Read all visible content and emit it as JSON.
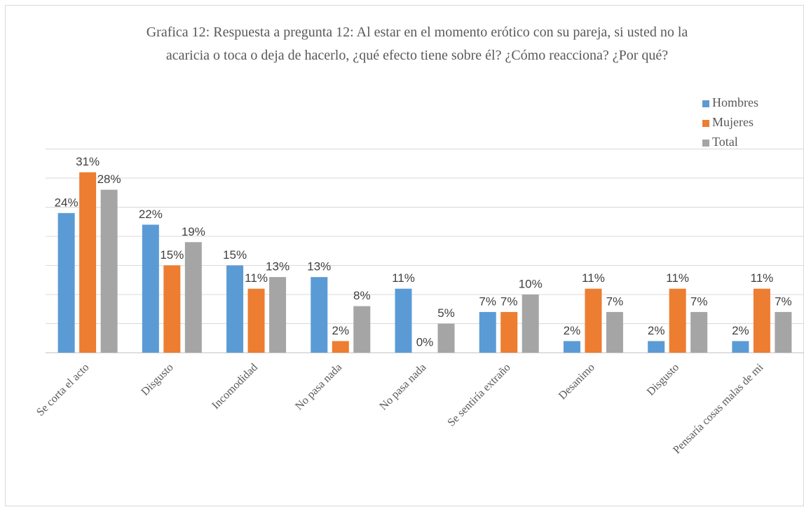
{
  "chart_data": {
    "type": "bar",
    "title": "Grafica 12: Respuesta a pregunta 12: Al estar en el momento erótico con su pareja, si usted no la acaricia o toca o deja de hacerlo, ¿qué efecto tiene sobre él? ¿Cómo reacciona? ¿Por qué?",
    "categories": [
      "Se corta el acto",
      "Disgusto",
      "Incomodidad",
      "No pasa nada",
      "No pasa nada",
      "Se sentiría extraño",
      "Desanimo",
      "Disgusto",
      "Pensaría cosas malas de mi"
    ],
    "series": [
      {
        "name": "Hombres",
        "color": "#5b9bd5",
        "values": [
          24,
          22,
          15,
          13,
          11,
          7,
          2,
          2,
          2
        ],
        "value_labels": [
          "24%",
          "22%",
          "15%",
          "13%",
          "11%",
          "7%",
          "2%",
          "2%",
          "2%"
        ]
      },
      {
        "name": "Mujeres",
        "color": "#ed7d31",
        "values": [
          31,
          15,
          11,
          2,
          0,
          7,
          11,
          11,
          11
        ],
        "value_labels": [
          "31%",
          "15%",
          "11%",
          "2%",
          "0%",
          "7%",
          "11%",
          "11%",
          "11%"
        ]
      },
      {
        "name": "Total",
        "color": "#a5a5a5",
        "values": [
          28,
          19,
          13,
          8,
          5,
          10,
          7,
          7,
          7
        ],
        "value_labels": [
          "28%",
          "19%",
          "13%",
          "8%",
          "5%",
          "10%",
          "7%",
          "7%",
          "7%"
        ]
      }
    ],
    "ylim": [
      0,
      35
    ],
    "yticks": [
      0,
      5,
      10,
      15,
      20,
      25,
      30,
      35
    ],
    "grid": true,
    "legend": "top-right"
  }
}
